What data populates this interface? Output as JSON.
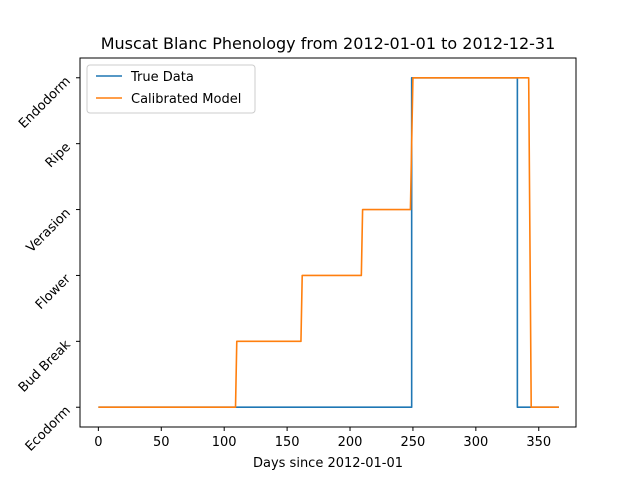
{
  "chart_data": {
    "type": "line",
    "title": "Muscat Blanc Phenology from 2012-01-01 to 2012-12-31",
    "xlabel": "Days since 2012-01-01",
    "ylabel": "",
    "xlim": [
      -14.6,
      379.6
    ],
    "ylim": [
      -0.3,
      5.3
    ],
    "x_ticks": [
      0,
      50,
      100,
      150,
      200,
      250,
      300,
      350
    ],
    "y_categories": [
      "Ecodorm",
      "Bud Break",
      "Flower",
      "Verasion",
      "Ripe",
      "Endodorm"
    ],
    "legend": {
      "position": "top-left"
    },
    "grid": false,
    "series": [
      {
        "name": "True Data",
        "color": "#1f77b4",
        "x": [
          0,
          249,
          249,
          333,
          333,
          366
        ],
        "y": [
          0,
          0,
          5,
          5,
          0,
          0
        ]
      },
      {
        "name": "Calibrated Model",
        "color": "#ff7f0e",
        "x": [
          0,
          109,
          110,
          161,
          162,
          209,
          210,
          248,
          250,
          342,
          344,
          366
        ],
        "y": [
          0,
          0,
          1,
          1,
          2,
          2,
          3,
          3,
          5,
          5,
          0,
          0
        ]
      }
    ]
  }
}
